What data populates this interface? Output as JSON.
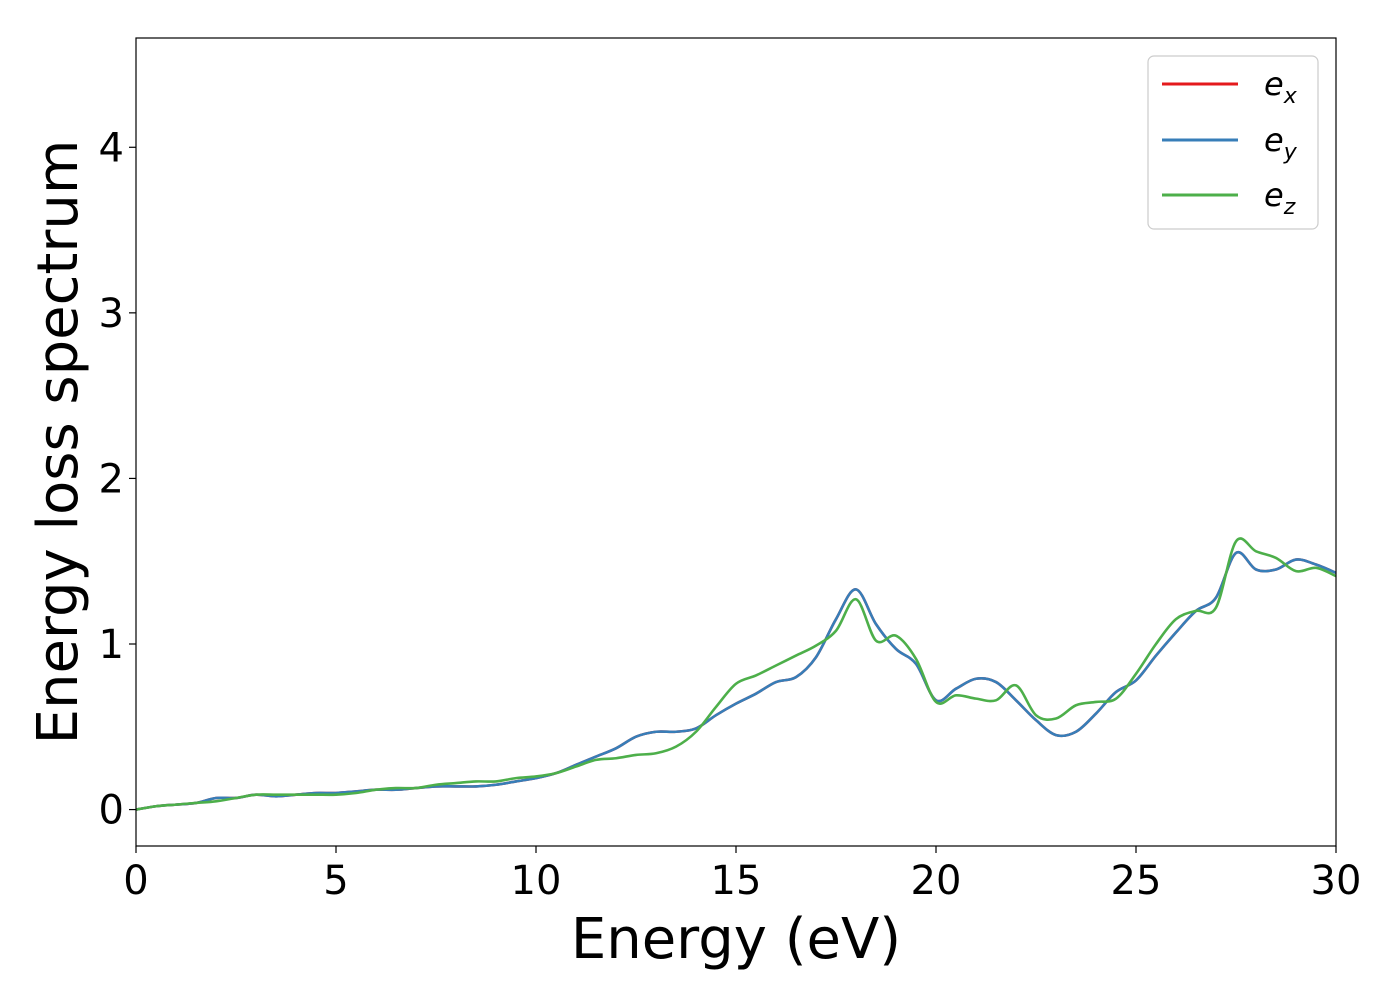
{
  "chart_data": {
    "type": "line",
    "title": "",
    "xlabel": "Energy (eV)",
    "ylabel": "Energy loss spectrum",
    "xlim": [
      0,
      30
    ],
    "ylim": [
      -0.22,
      4.66
    ],
    "xticks": [
      0,
      5,
      10,
      15,
      20,
      25,
      30
    ],
    "yticks": [
      0,
      1,
      2,
      3,
      4
    ],
    "xtick_labels": [
      "0",
      "5",
      "10",
      "15",
      "20",
      "25",
      "30"
    ],
    "ytick_labels": [
      "0",
      "1",
      "2",
      "3",
      "4"
    ],
    "grid": false,
    "legend_position": "top-right",
    "x": [
      0,
      0.5,
      1,
      1.5,
      2,
      2.5,
      3,
      3.5,
      4,
      4.5,
      5,
      5.5,
      6,
      6.5,
      7,
      7.5,
      8,
      8.5,
      9,
      9.5,
      10,
      10.5,
      11,
      11.5,
      12,
      12.5,
      13,
      13.5,
      14,
      14.5,
      15,
      15.5,
      16,
      16.5,
      17,
      17.5,
      18,
      18.5,
      19,
      19.5,
      20,
      20.5,
      21,
      21.5,
      22,
      22.5,
      23,
      23.5,
      24,
      24.5,
      25,
      25.5,
      26,
      26.5,
      27,
      27.5,
      28,
      28.5,
      29,
      29.5,
      30
    ],
    "series": [
      {
        "name_base": "e",
        "name_sub": "x",
        "color": "#e41a1c",
        "values": [
          0.0,
          0.02,
          0.03,
          0.04,
          0.07,
          0.07,
          0.09,
          0.08,
          0.09,
          0.1,
          0.1,
          0.11,
          0.12,
          0.12,
          0.13,
          0.14,
          0.14,
          0.14,
          0.15,
          0.17,
          0.19,
          0.22,
          0.27,
          0.32,
          0.37,
          0.44,
          0.47,
          0.47,
          0.49,
          0.57,
          0.64,
          0.7,
          0.77,
          0.8,
          0.92,
          1.15,
          1.33,
          1.12,
          0.97,
          0.88,
          0.66,
          0.73,
          0.79,
          0.77,
          0.66,
          0.54,
          0.45,
          0.47,
          0.58,
          0.71,
          0.78,
          0.93,
          1.07,
          1.2,
          1.28,
          1.55,
          1.45,
          1.45,
          1.51,
          1.48,
          1.43
        ]
      },
      {
        "name_base": "e",
        "name_sub": "y",
        "color": "#377eb8",
        "values": [
          0.0,
          0.02,
          0.03,
          0.04,
          0.07,
          0.07,
          0.09,
          0.08,
          0.09,
          0.1,
          0.1,
          0.11,
          0.12,
          0.12,
          0.13,
          0.14,
          0.14,
          0.14,
          0.15,
          0.17,
          0.19,
          0.22,
          0.27,
          0.32,
          0.37,
          0.44,
          0.47,
          0.47,
          0.49,
          0.57,
          0.64,
          0.7,
          0.77,
          0.8,
          0.92,
          1.15,
          1.33,
          1.12,
          0.97,
          0.88,
          0.66,
          0.73,
          0.79,
          0.77,
          0.66,
          0.54,
          0.45,
          0.47,
          0.58,
          0.71,
          0.78,
          0.93,
          1.07,
          1.2,
          1.28,
          1.55,
          1.45,
          1.45,
          1.51,
          1.48,
          1.43
        ]
      },
      {
        "name_base": "e",
        "name_sub": "z",
        "color": "#4daf4a",
        "values": [
          0.0,
          0.02,
          0.03,
          0.04,
          0.05,
          0.07,
          0.09,
          0.09,
          0.09,
          0.09,
          0.09,
          0.1,
          0.12,
          0.13,
          0.13,
          0.15,
          0.16,
          0.17,
          0.17,
          0.19,
          0.2,
          0.22,
          0.26,
          0.3,
          0.31,
          0.33,
          0.34,
          0.38,
          0.47,
          0.62,
          0.76,
          0.81,
          0.87,
          0.93,
          0.99,
          1.08,
          1.27,
          1.02,
          1.05,
          0.91,
          0.65,
          0.69,
          0.67,
          0.66,
          0.75,
          0.57,
          0.55,
          0.63,
          0.65,
          0.67,
          0.82,
          1.0,
          1.15,
          1.2,
          1.22,
          1.62,
          1.56,
          1.52,
          1.44,
          1.46,
          1.41
        ]
      }
    ]
  }
}
